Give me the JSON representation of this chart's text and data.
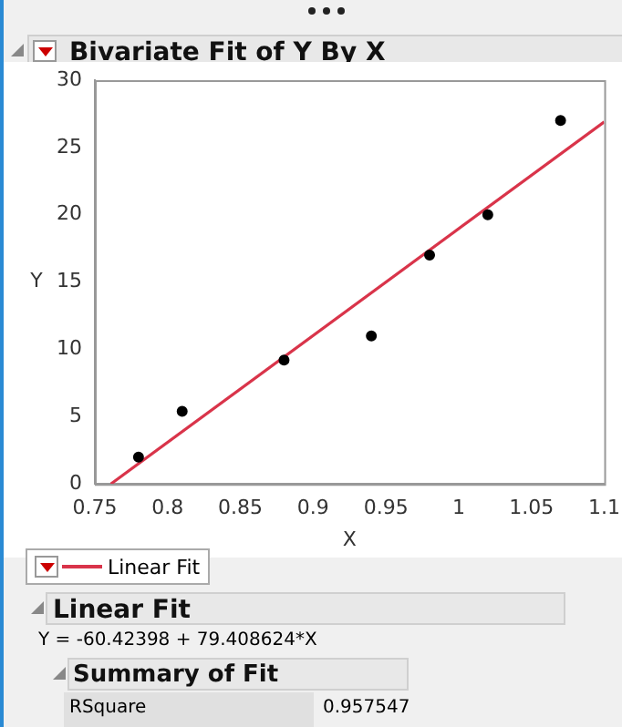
{
  "chart_data": {
    "type": "scatter",
    "title": "Bivariate Fit of Y By X",
    "xlabel": "X",
    "ylabel": "Y",
    "xlim": [
      0.75,
      1.1
    ],
    "xticks": [
      0.75,
      0.8,
      0.85,
      0.9,
      0.95,
      1,
      1.05,
      1.1
    ],
    "ylim": [
      0,
      30
    ],
    "yticks": [
      0,
      5,
      10,
      15,
      20,
      25,
      30
    ],
    "series": [
      {
        "color": "#000000",
        "marker": "circle",
        "x": [
          0.78,
          0.81,
          0.88,
          0.94,
          0.98,
          1.02,
          1.07
        ],
        "values": [
          2,
          5.4,
          9.2,
          11,
          17,
          20,
          27
        ]
      },
      {
        "type": "line",
        "name": "Linear Fit",
        "color": "#d9344a",
        "x": [
          0.761,
          1.1
        ],
        "values": [
          0,
          26.9
        ],
        "marker": "none"
      }
    ],
    "grid": false,
    "legend": "bottom left",
    "annotations": [
      "Linear Fit",
      "Y = -60.42398 + 79.408624*X",
      "Summary of Fit",
      "RSquare",
      "0.957547"
    ]
  }
}
